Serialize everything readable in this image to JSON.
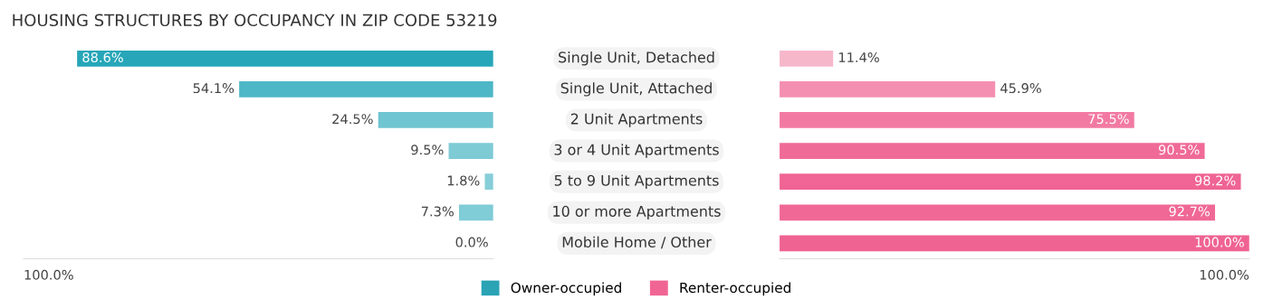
{
  "chart_data": [
    {
      "type": "bar",
      "orientation": "horizontal",
      "title": "HOUSING STRUCTURES BY OCCUPANCY IN ZIP CODE 53219",
      "categories": [
        "Single Unit, Detached",
        "Single Unit, Attached",
        "2 Unit Apartments",
        "3 or 4 Unit Apartments",
        "5 to 9 Unit Apartments",
        "10 or more Apartments",
        "Mobile Home / Other"
      ],
      "series": [
        {
          "name": "Owner-occupied",
          "color": "#2aa3b5",
          "values": [
            88.6,
            54.1,
            24.5,
            9.5,
            1.8,
            7.3,
            0.0
          ],
          "colors": [
            "#26a6b8",
            "#4db7c6",
            "#6fc5d1",
            "#7ecbd6",
            "#86ced8",
            "#80ccd7",
            "#8ad0da"
          ],
          "value_labels": [
            "88.6%",
            "54.1%",
            "24.5%",
            "9.5%",
            "1.8%",
            "7.3%",
            "0.0%"
          ]
        }
      ],
      "xlim": [
        100,
        0
      ],
      "annotations": [
        "100.0%"
      ],
      "legend": "bottom"
    },
    {
      "type": "bar",
      "orientation": "horizontal",
      "series": [
        {
          "name": "Renter-occupied",
          "color": "#f06593",
          "values": [
            11.4,
            45.9,
            75.5,
            90.5,
            98.2,
            92.7,
            100.0
          ],
          "colors": [
            "#f7b7cb",
            "#f48fb1",
            "#f27aa2",
            "#f06a97",
            "#ef6494",
            "#f06896",
            "#ef6393"
          ],
          "value_labels": [
            "11.4%",
            "45.9%",
            "75.5%",
            "90.5%",
            "98.2%",
            "92.7%",
            "100.0%"
          ]
        }
      ],
      "xlim": [
        0,
        100
      ],
      "annotations": [
        "100.0%"
      ]
    }
  ]
}
